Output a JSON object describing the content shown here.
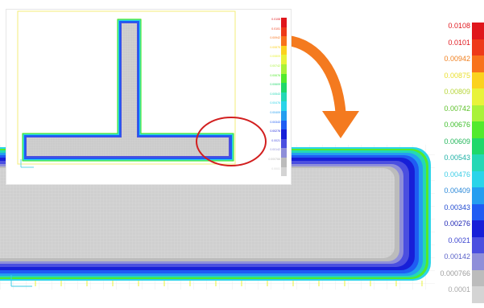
{
  "colors": {
    "mesh_fill": "#c9c9c9",
    "mesh_grid": "#e6e6e6",
    "accent_arrow": "#f47a1f",
    "highlight_circle": "#d21f1f"
  },
  "main_legend": {
    "entries": [
      {
        "label": "0.0108",
        "color": "#e0161c",
        "text_color": "#e0161c"
      },
      {
        "label": "0.0101",
        "color": "#ee3a19",
        "text_color": "#e0161c"
      },
      {
        "label": "0.00942",
        "color": "#f8731c",
        "text_color": "#f08020"
      },
      {
        "label": "0.00875",
        "color": "#fbd21e",
        "text_color": "#e9df2c"
      },
      {
        "label": "0.00809",
        "color": "#e8f33a",
        "text_color": "#b7d63a"
      },
      {
        "label": "0.00742",
        "color": "#a9f239",
        "text_color": "#5dc12a"
      },
      {
        "label": "0.00676",
        "color": "#52ea2d",
        "text_color": "#3ebf2b"
      },
      {
        "label": "0.00609",
        "color": "#1fd86a",
        "text_color": "#22b65a"
      },
      {
        "label": "0.00543",
        "color": "#24d8b5",
        "text_color": "#1fb1a6"
      },
      {
        "label": "0.00476",
        "color": "#2ad4e9",
        "text_color": "#3ccde6"
      },
      {
        "label": "0.00409",
        "color": "#249ef0",
        "text_color": "#2a88d9"
      },
      {
        "label": "0.00343",
        "color": "#1f5cf3",
        "text_color": "#204ad0"
      },
      {
        "label": "0.00276",
        "color": "#171fd8",
        "text_color": "#171fb3"
      },
      {
        "label": "0.0021",
        "color": "#4b4fe0",
        "text_color": "#3a44d0"
      },
      {
        "label": "0.00142",
        "color": "#8f8fd9",
        "text_color": "#5b63c9"
      },
      {
        "label": "0.000766",
        "color": "#bcbcbc",
        "text_color": "#9d9d9d"
      },
      {
        "label": "0.0001",
        "color": "#d4d4d4",
        "text_color": "#a8a8a8"
      }
    ]
  },
  "inset_legend": {
    "entries": [
      {
        "label": "0.0108",
        "color": "#e0161c"
      },
      {
        "label": "0.0101",
        "color": "#ee3a19"
      },
      {
        "label": "0.00942",
        "color": "#f8731c"
      },
      {
        "label": "0.00875",
        "color": "#fbd21e"
      },
      {
        "label": "0.00809",
        "color": "#e8f33a"
      },
      {
        "label": "0.00742",
        "color": "#a9f239"
      },
      {
        "label": "0.00676",
        "color": "#52ea2d"
      },
      {
        "label": "0.00609",
        "color": "#1fd86a"
      },
      {
        "label": "0.00543",
        "color": "#24d8b5"
      },
      {
        "label": "0.00476",
        "color": "#2ad4e9"
      },
      {
        "label": "0.00409",
        "color": "#249ef0"
      },
      {
        "label": "0.00343",
        "color": "#1f5cf3"
      },
      {
        "label": "0.00276",
        "color": "#171fd8"
      },
      {
        "label": "0.0021",
        "color": "#4b4fe0"
      },
      {
        "label": "0.00142",
        "color": "#8f8fd9"
      },
      {
        "label": "0.000766",
        "color": "#bcbcbc"
      },
      {
        "label": "0.0001",
        "color": "#d4d4d4"
      }
    ]
  }
}
